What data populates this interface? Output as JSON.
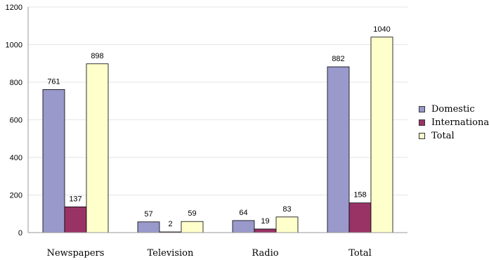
{
  "chart_data": {
    "type": "bar",
    "categories": [
      "Newspapers",
      "Television",
      "Radio",
      "Total"
    ],
    "series": [
      {
        "name": "Domestic",
        "values": [
          761,
          57,
          64,
          882
        ],
        "color": "#9999cc"
      },
      {
        "name": "International",
        "values": [
          137,
          2,
          19,
          158
        ],
        "color": "#993366"
      },
      {
        "name": "Total",
        "values": [
          898,
          59,
          83,
          1040
        ],
        "color": "#ffffcc"
      }
    ],
    "ylim": [
      0,
      1200
    ],
    "yticks": [
      0,
      200,
      400,
      600,
      800,
      1000,
      1200
    ],
    "grid": true,
    "legend_position": "right",
    "title": "",
    "xlabel": "",
    "ylabel": ""
  }
}
